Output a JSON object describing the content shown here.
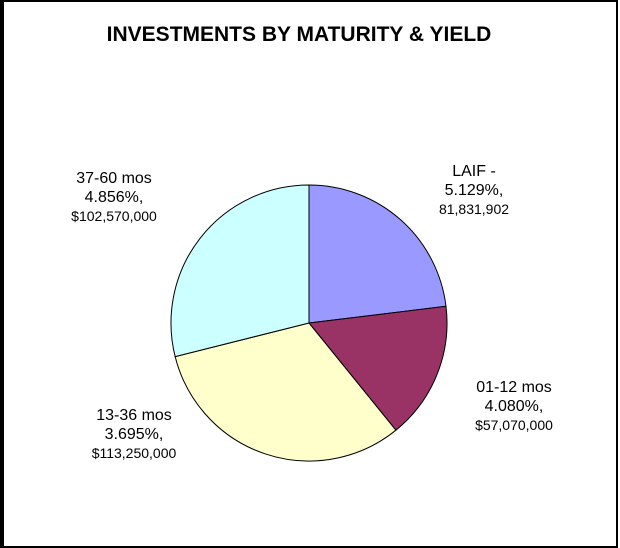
{
  "chart_data": {
    "type": "pie",
    "title": "INVESTMENTS BY MATURITY & YIELD",
    "categories": [
      "LAIF -",
      "01-12 mos",
      "13-36 mos",
      "37-60 mos"
    ],
    "yield_labels": [
      "5.129%,",
      "4.080%,",
      "3.695%,",
      "4.856%,"
    ],
    "values": [
      81831902,
      57070000,
      113250000,
      102570000
    ],
    "value_labels": [
      "81,831,902",
      "$57,070,000",
      "$113,250,000",
      "$102,570,000"
    ],
    "colors": [
      "#9999ff",
      "#993366",
      "#ffffcc",
      "#ccffff"
    ]
  }
}
